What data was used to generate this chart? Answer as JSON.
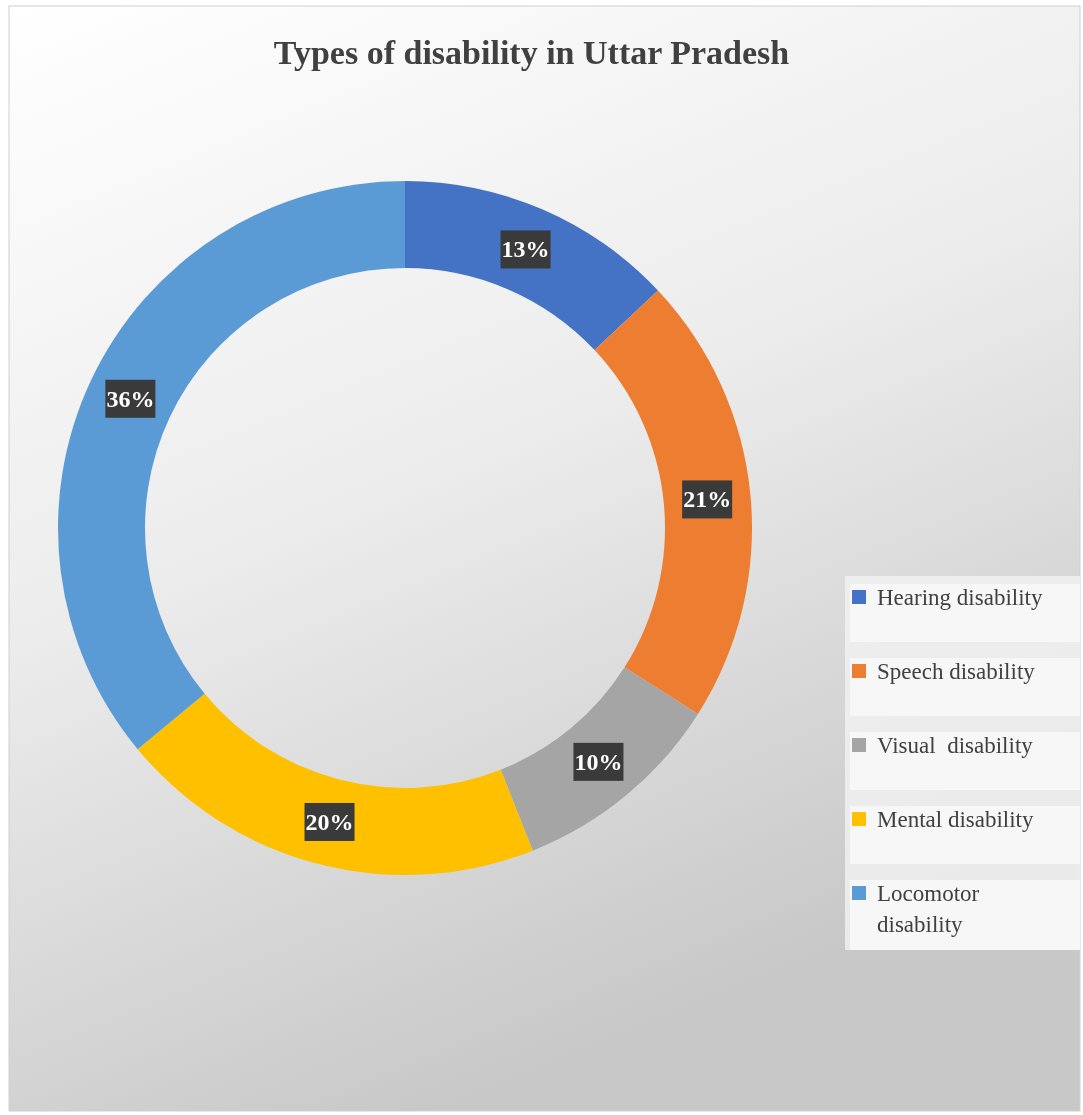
{
  "chart_data": {
    "type": "donut",
    "title": "Types of disability in Uttar Pradesh",
    "categories": [
      "Hearing disability",
      "Speech disability",
      "Visual  disability",
      "Mental disability",
      "Locomotor disability"
    ],
    "values": [
      13,
      21,
      10,
      20,
      36
    ],
    "colors": [
      "#4472c4",
      "#ed7d31",
      "#a5a5a5",
      "#ffc000",
      "#5b9bd5"
    ],
    "value_labels": [
      "13%",
      "21%",
      "10%",
      "20%",
      "36%"
    ],
    "legend": "right"
  }
}
